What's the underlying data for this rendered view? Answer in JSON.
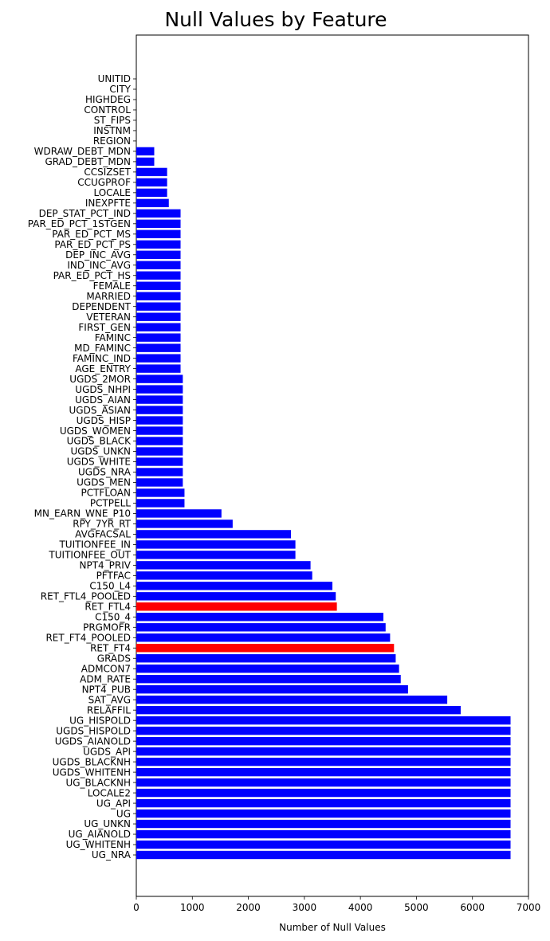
{
  "chart_data": {
    "type": "bar",
    "orientation": "horizontal",
    "title": "Null Values by Feature",
    "xlabel": "Number of Null Values",
    "ylabel": "",
    "xlim": [
      0,
      7000
    ],
    "xticks": [
      0,
      1000,
      2000,
      3000,
      4000,
      5000,
      6000,
      7000
    ],
    "grid": false,
    "default_color": "#0000ff",
    "highlight_color": "#ff0000",
    "highlighted": [
      "RET_FTL4",
      "RET_FT4"
    ],
    "categories": [
      "UNITID",
      "CITY",
      "HIGHDEG",
      "CONTROL",
      "ST_FIPS",
      "INSTNM",
      "REGION",
      "WDRAW_DEBT_MDN",
      "GRAD_DEBT_MDN",
      "CCSIZSET",
      "CCUGPROF",
      "LOCALE",
      "INEXPFTE",
      "DEP_STAT_PCT_IND",
      "PAR_ED_PCT_1STGEN",
      "PAR_ED_PCT_MS",
      "PAR_ED_PCT_PS",
      "DEP_INC_AVG",
      "IND_INC_AVG",
      "PAR_ED_PCT_HS",
      "FEMALE",
      "MARRIED",
      "DEPENDENT",
      "VETERAN",
      "FIRST_GEN",
      "FAMINC",
      "MD_FAMINC",
      "FAMINC_IND",
      "AGE_ENTRY",
      "UGDS_2MOR",
      "UGDS_NHPI",
      "UGDS_AIAN",
      "UGDS_ASIAN",
      "UGDS_HISP",
      "UGDS_WOMEN",
      "UGDS_BLACK",
      "UGDS_UNKN",
      "UGDS_WHITE",
      "UGDS_NRA",
      "UGDS_MEN",
      "PCTFLOAN",
      "PCTPELL",
      "MN_EARN_WNE_P10",
      "RPY_7YR_RT",
      "AVGFACSAL",
      "TUITIONFEE_IN",
      "TUITIONFEE_OUT",
      "NPT4_PRIV",
      "PFTFAC",
      "C150_L4",
      "RET_FTL4_POOLED",
      "RET_FTL4",
      "C150_4",
      "PRGMOFR",
      "RET_FT4_POOLED",
      "RET_FT4",
      "GRADS",
      "ADMCON7",
      "ADM_RATE",
      "NPT4_PUB",
      "SAT_AVG",
      "RELAFFIL",
      "UG_HISPOLD",
      "UGDS_HISPOLD",
      "UGDS_AIANOLD",
      "UGDS_API",
      "UGDS_BLACKNH",
      "UGDS_WHITENH",
      "UG_BLACKNH",
      "LOCALE2",
      "UG_API",
      "UG",
      "UG_UNKN",
      "UG_AIANOLD",
      "UG_WHITENH",
      "UG_NRA"
    ],
    "values": [
      0,
      0,
      0,
      0,
      0,
      0,
      0,
      320,
      320,
      550,
      550,
      550,
      580,
      790,
      790,
      790,
      790,
      790,
      790,
      790,
      790,
      790,
      790,
      790,
      790,
      790,
      790,
      790,
      790,
      830,
      830,
      830,
      830,
      830,
      830,
      830,
      830,
      830,
      830,
      830,
      860,
      860,
      1520,
      1720,
      2760,
      2840,
      2840,
      3110,
      3140,
      3500,
      3560,
      3580,
      4410,
      4450,
      4530,
      4600,
      4630,
      4690,
      4720,
      4850,
      5550,
      5790,
      6680,
      6680,
      6680,
      6680,
      6680,
      6680,
      6680,
      6680,
      6680,
      6680,
      6680,
      6680,
      6680,
      6680
    ]
  }
}
